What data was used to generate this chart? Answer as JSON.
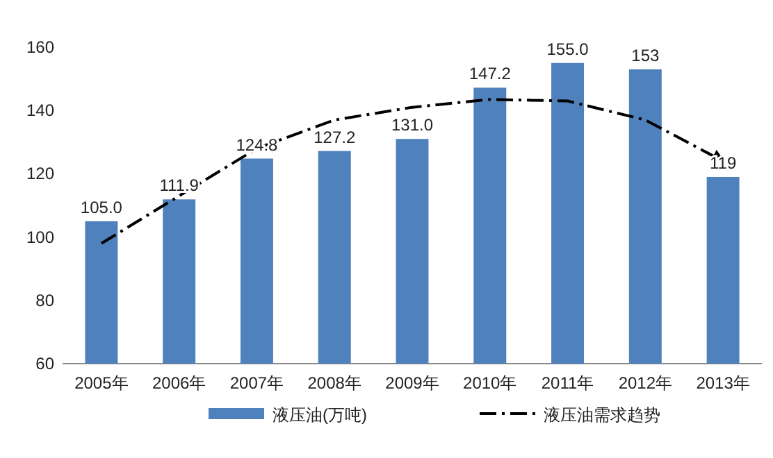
{
  "chart_data": {
    "type": "bar",
    "categories": [
      "2005年",
      "2006年",
      "2007年",
      "2008年",
      "2009年",
      "2010年",
      "2011年",
      "2012年",
      "2013年"
    ],
    "series": [
      {
        "name": "液压油(万吨)",
        "color": "#4f81bd",
        "values": [
          105.0,
          111.9,
          124.8,
          127.2,
          131.0,
          147.2,
          155.0,
          153,
          119
        ],
        "value_labels": [
          "105.0",
          "111.9",
          "124.8",
          "127.2",
          "131.0",
          "147.2",
          "155.0",
          "153",
          "119"
        ]
      },
      {
        "name": "液压油需求趋势",
        "type": "line",
        "color": "#000000",
        "line_style": "dashed",
        "marker": "none",
        "values": [
          98,
          113,
          128,
          137,
          141,
          143.5,
          143,
          137,
          124
        ]
      }
    ],
    "ylim": [
      60,
      160
    ],
    "yticks": [
      60,
      80,
      100,
      120,
      140,
      160
    ],
    "grid": false,
    "legend": "bottom"
  }
}
